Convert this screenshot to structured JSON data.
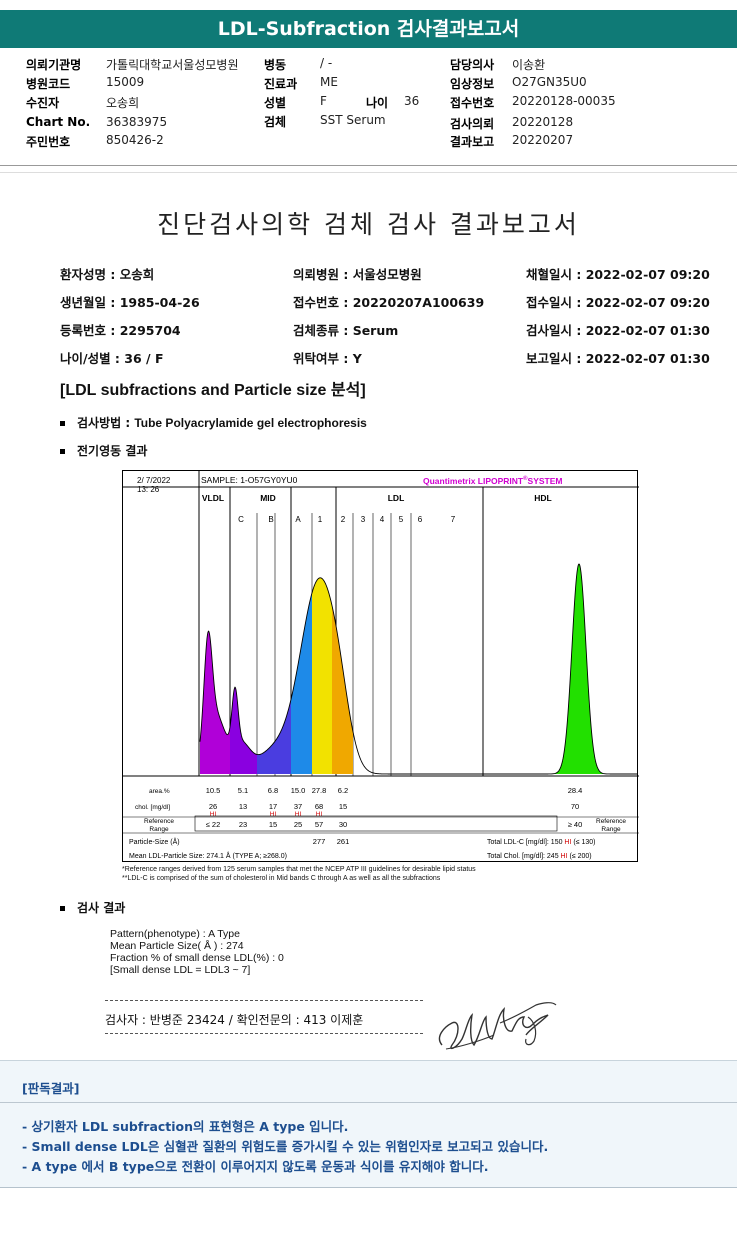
{
  "header": {
    "title": "LDL-Subfraction 검사결과보고서"
  },
  "info": {
    "hospital_label": "의뢰기관명",
    "hospital": "가톨릭대학교서울성모병원",
    "ward_label": "병동",
    "ward": "/ -",
    "doctor_label": "담당의사",
    "doctor": "이송환",
    "hcode_label": "병원코드",
    "hcode": "15009",
    "dept_label": "진료과",
    "dept": "ME",
    "clinical_label": "임상정보",
    "clinical": "O27GN35U0",
    "examinee_label": "수진자",
    "examinee": "오송희",
    "sex_label": "성별",
    "sex": "F",
    "age_label": "나이",
    "age": "36",
    "receipt_label": "접수번호",
    "receipt": "20220128-00035",
    "chart_label": "Chart No.",
    "chart": "36383975",
    "specimen_label": "검체",
    "specimen": "SST Serum",
    "request_label": "검사의뢰",
    "request": "20220128",
    "rrn_label": "주민번호",
    "rrn": "850426-2",
    "report_label": "결과보고",
    "report": "20220207"
  },
  "report": {
    "title": "진단검사의학 검체 검사 결과보고서",
    "patient": [
      [
        "환자성명 : ",
        "오송희"
      ],
      [
        "생년월일 : ",
        "1985-04-26"
      ],
      [
        "등록번호 : ",
        "2295704"
      ],
      [
        "나이/성별 : ",
        "36 / F"
      ],
      [
        "의뢰병원 : ",
        "서울성모병원"
      ],
      [
        "접수번호 : ",
        "20220207A100639"
      ],
      [
        "검체종류 : ",
        "Serum"
      ],
      [
        "위탁여부 : ",
        "Y"
      ],
      [
        "채혈일시 : ",
        "2022-02-07 09:20"
      ],
      [
        "접수일시 : ",
        "2022-02-07 09:20"
      ],
      [
        "검사일시 : ",
        "2022-02-07 01:30"
      ],
      [
        "보고일시 : ",
        "2022-02-07 01:30"
      ]
    ],
    "section_title": "[LDL subfractions and Particle size 분석]",
    "method_label": "검사방법 : ",
    "method": "Tube Polyacrylamide gel electrophoresis",
    "electro_label": "전기영동 결과",
    "result_label": "검사 결과"
  },
  "chart_data": {
    "type": "area",
    "date": "2/ 7/2022",
    "time": "13: 26",
    "sample": "SAMPLE:   1-O57GY0YU0",
    "brand": "Quantimetrix LIPOPRINT",
    "brand_sup": "®",
    "brand_tail": "SYSTEM",
    "bands": [
      "VLDL",
      "MID",
      "LDL",
      "HDL"
    ],
    "sub_bands": [
      "C",
      "B",
      "A",
      "1",
      "2",
      "3",
      "4",
      "5",
      "6",
      "7"
    ],
    "area_label": "area.%",
    "area_values": [
      "10.5",
      "5.1",
      "6.8",
      "15.0",
      "27.8",
      "6.2",
      "28.4"
    ],
    "chol_label": "chol. [mg/dl]",
    "chol_values": [
      "26",
      "13",
      "17",
      "37",
      "68",
      "15",
      "70"
    ],
    "chol_flags": [
      "HI",
      "",
      "HI",
      "HI",
      "HI",
      "",
      ""
    ],
    "ref_label_1": "Reference",
    "ref_label_2": "Range",
    "ref_values": [
      "≤ 22",
      "23",
      "15",
      "25",
      "57",
      "30",
      "≥ 40"
    ],
    "ref_right_1": "Reference",
    "ref_right_2": "Range",
    "particle_label": "Particle-Size (Å)",
    "particle_values": [
      "277",
      "261"
    ],
    "mean_text": "Mean LDL-Particle Size:  274.1 Å  (TYPE A; ≥268.0)",
    "total_ldl": "Total LDL-C [mg/dl]:  150",
    "total_ldl_flag": "HI",
    "total_ldl_ref": "(≤ 130)",
    "total_chol": "Total Chol. [mg/dl]:  245",
    "total_chol_flag": "HI",
    "total_chol_ref": "(≤ 200)",
    "colors": {
      "vldl": "#b000d8",
      "mid_c": "#8a00e0",
      "mid_b": "#4a3de0",
      "mid_a": "#1e8ae8",
      "ldl1": "#f2e200",
      "ldl2": "#f0a800",
      "hdl": "#22e000"
    }
  },
  "footnotes": [
    "*Reference ranges derived from 125 serum samples that met the NCEP ATP III guidelines for desirable lipid status",
    "**LDL-C is comprised of the sum of cholesterol in Mid bands C through A as well as all the subfractions"
  ],
  "results": [
    "Pattern(phenotype) : A Type",
    "Mean Particle Size( Å ) : 274",
    "Fraction % of small dense LDL(%) : 0",
    "[Small dense LDL = LDL3 ~ 7]"
  ],
  "signature": {
    "text": "검사자 : 반병준  23424  /  확인전문의 : 413  이제훈"
  },
  "opinion": {
    "title": "[판독결과]",
    "line1": "- 상기환자 LDL subfraction의 표현형은 A type 입니다.",
    "line2": "-   Small dense LDL은 심혈관 질환의 위험도를 증가시킬 수 있는 위험인자로 보고되고 있습니다.",
    "line3": "-   A type 에서 B type으로 전환이 이루어지지 않도록 운동과 식이를 유지해야 합니다."
  }
}
